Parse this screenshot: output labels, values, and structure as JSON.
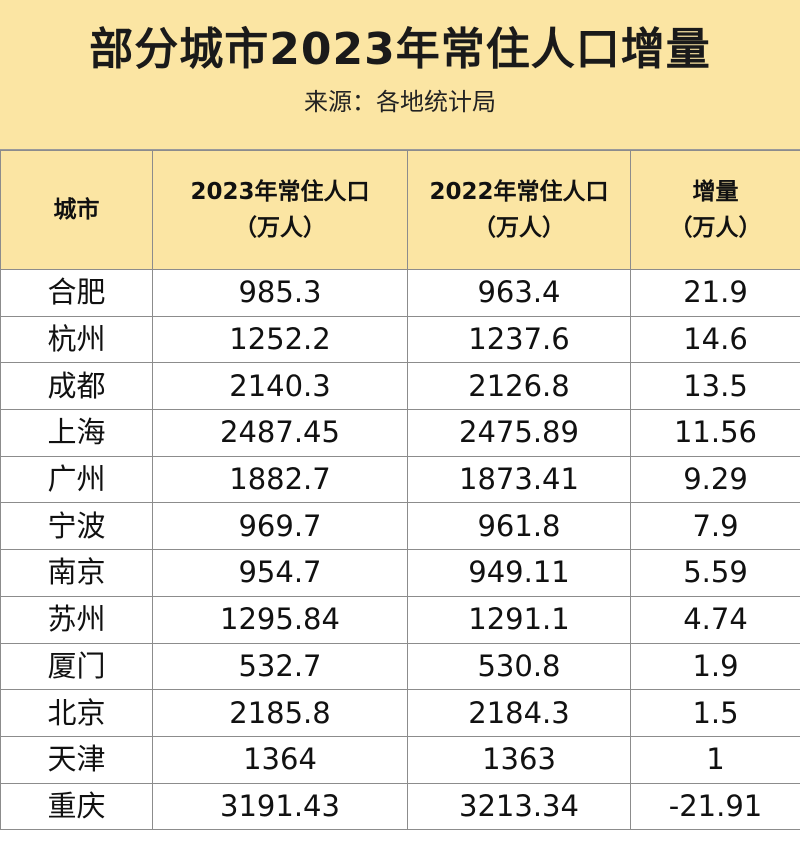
{
  "title": "部分城市2023年常住人口增量",
  "subtitle": "来源：各地统计局",
  "colors": {
    "header_bg": "#fbe5a3",
    "border": "#8c8c8c"
  },
  "columns": [
    {
      "line1": "城市",
      "line2": ""
    },
    {
      "line1": "2023年常住人口",
      "line2": "（万人）"
    },
    {
      "line1": "2022年常住人口",
      "line2": "（万人）"
    },
    {
      "line1": "增量",
      "line2": "（万人）"
    }
  ],
  "rows": [
    [
      "合肥",
      "985.3",
      "963.4",
      "21.9"
    ],
    [
      "杭州",
      "1252.2",
      "1237.6",
      "14.6"
    ],
    [
      "成都",
      "2140.3",
      "2126.8",
      "13.5"
    ],
    [
      "上海",
      "2487.45",
      "2475.89",
      "11.56"
    ],
    [
      "广州",
      "1882.7",
      "1873.41",
      "9.29"
    ],
    [
      "宁波",
      "969.7",
      "961.8",
      "7.9"
    ],
    [
      "南京",
      "954.7",
      "949.11",
      "5.59"
    ],
    [
      "苏州",
      "1295.84",
      "1291.1",
      "4.74"
    ],
    [
      "厦门",
      "532.7",
      "530.8",
      "1.9"
    ],
    [
      "北京",
      "2185.8",
      "2184.3",
      "1.5"
    ],
    [
      "天津",
      "1364",
      "1363",
      "1"
    ],
    [
      "重庆",
      "3191.43",
      "3213.34",
      "-21.91"
    ]
  ]
}
